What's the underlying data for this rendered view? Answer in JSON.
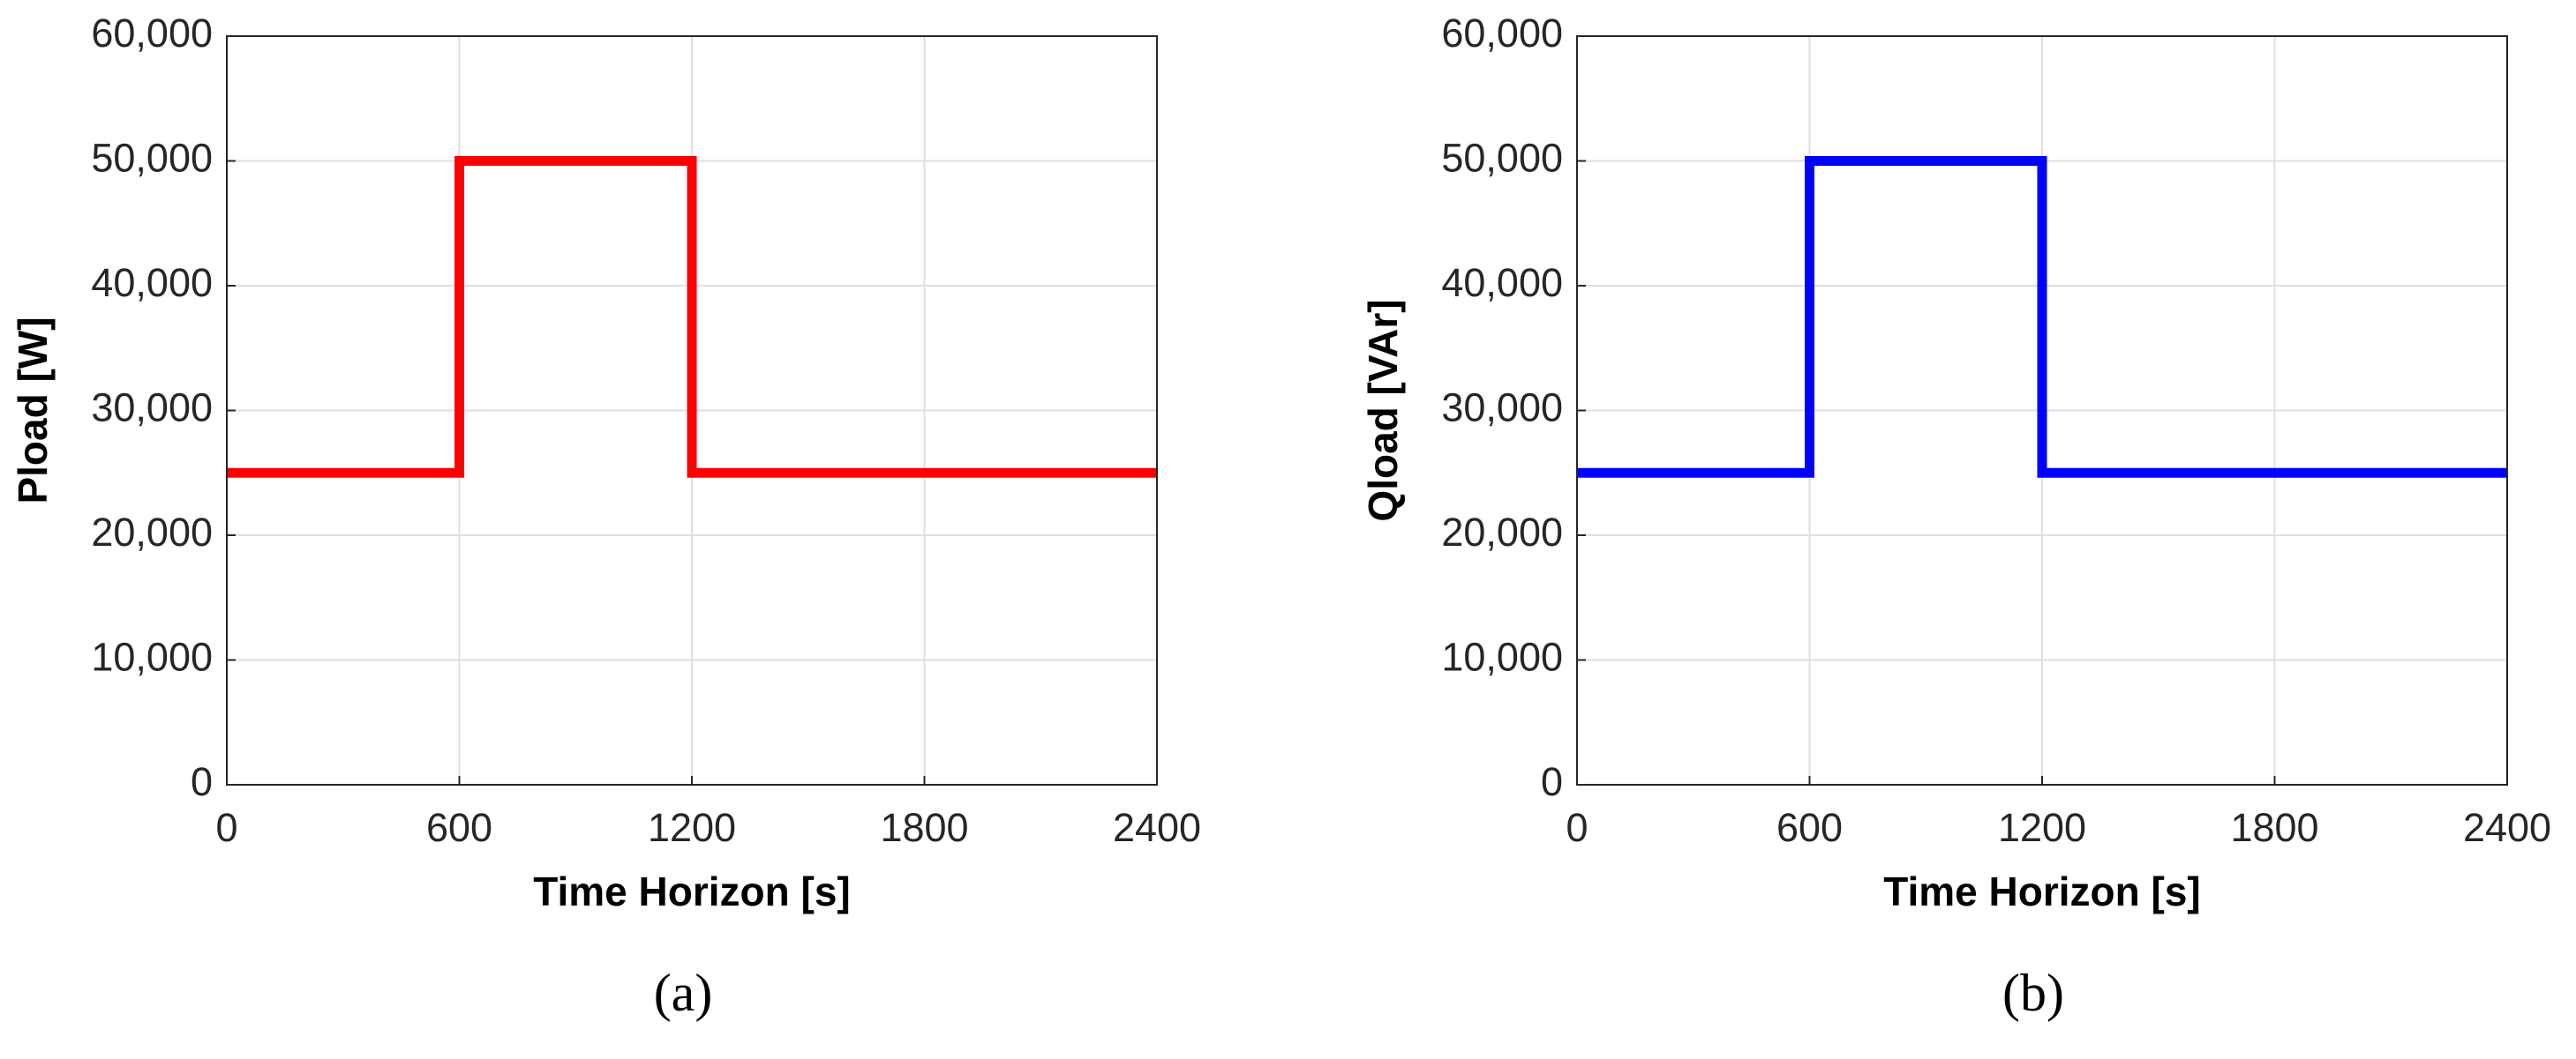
{
  "chart_data": [
    {
      "type": "line",
      "caption": "(a)",
      "xlabel": "Time Horizon [s]",
      "ylabel": "Pload [W]",
      "x": [
        0,
        600,
        600,
        1200,
        1200,
        2400
      ],
      "values": [
        25000,
        25000,
        50000,
        50000,
        25000,
        25000
      ],
      "color": "#ff0000",
      "xlim": [
        0,
        2400
      ],
      "ylim": [
        0,
        60000
      ],
      "xticks": [
        0,
        600,
        1200,
        1800,
        2400
      ],
      "yticks": [
        0,
        {
          "value": 10000,
          "label": "10,000"
        },
        {
          "value": 20000,
          "label": "20,000"
        },
        {
          "value": 30000,
          "label": "30,000"
        },
        {
          "value": 40000,
          "label": "40,000"
        },
        {
          "value": 50000,
          "label": "50,000"
        },
        {
          "value": 60000,
          "label": "60,000"
        }
      ],
      "grid": true
    },
    {
      "type": "line",
      "caption": "(b)",
      "xlabel": "Time Horizon [s]",
      "ylabel": "Qload [VAr]",
      "x": [
        0,
        600,
        600,
        1200,
        1200,
        2400
      ],
      "values": [
        25000,
        25000,
        50000,
        50000,
        25000,
        25000
      ],
      "color": "#0000ff",
      "xlim": [
        0,
        2400
      ],
      "ylim": [
        0,
        60000
      ],
      "xticks": [
        0,
        600,
        1200,
        1800,
        2400
      ],
      "yticks": [
        0,
        {
          "value": 10000,
          "label": "10,000"
        },
        {
          "value": 20000,
          "label": "20,000"
        },
        {
          "value": 30000,
          "label": "30,000"
        },
        {
          "value": 40000,
          "label": "40,000"
        },
        {
          "value": 50000,
          "label": "50,000"
        },
        {
          "value": 60000,
          "label": "60,000"
        }
      ],
      "grid": true
    }
  ]
}
